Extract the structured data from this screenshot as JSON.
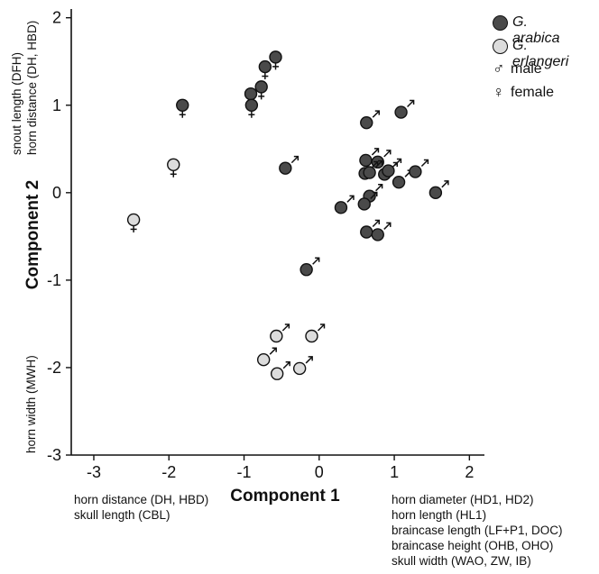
{
  "chart_data": {
    "type": "scatter",
    "xlabel": "Component 1",
    "ylabel": "Component 2",
    "xlim": [
      -3.3,
      2.2
    ],
    "ylim": [
      -3,
      2.1
    ],
    "xticks": [
      "-3",
      "-2",
      "-1",
      "0",
      "1",
      "2"
    ],
    "yticks": [
      "2",
      "1",
      "0",
      "-1",
      "-2",
      "-3"
    ],
    "grid": false,
    "legend_position": "top-right",
    "series": [
      {
        "name": "G. arabica",
        "color": "#4a4a4a",
        "points": [
          {
            "x": -1.82,
            "y": 1.0,
            "sex": "female"
          },
          {
            "x": -0.58,
            "y": 1.55,
            "sex": "female"
          },
          {
            "x": -0.72,
            "y": 1.44,
            "sex": "female"
          },
          {
            "x": -0.77,
            "y": 1.21,
            "sex": "female"
          },
          {
            "x": -0.91,
            "y": 1.13,
            "sex": "female"
          },
          {
            "x": -0.9,
            "y": 1.0,
            "sex": "female"
          },
          {
            "x": 0.63,
            "y": 0.8,
            "sex": "male"
          },
          {
            "x": 1.09,
            "y": 0.92,
            "sex": "male"
          },
          {
            "x": -0.45,
            "y": 0.28,
            "sex": "male"
          },
          {
            "x": 0.62,
            "y": 0.37,
            "sex": "male"
          },
          {
            "x": 0.78,
            "y": 0.35,
            "sex": "male"
          },
          {
            "x": 0.61,
            "y": 0.22,
            "sex": "male"
          },
          {
            "x": 0.67,
            "y": 0.23,
            "sex": "male"
          },
          {
            "x": 0.87,
            "y": 0.21,
            "sex": "male"
          },
          {
            "x": 0.92,
            "y": 0.25,
            "sex": "male"
          },
          {
            "x": 1.06,
            "y": 0.12,
            "sex": "male"
          },
          {
            "x": 1.28,
            "y": 0.24,
            "sex": "male"
          },
          {
            "x": 1.55,
            "y": 0.0,
            "sex": "male"
          },
          {
            "x": 0.67,
            "y": -0.04,
            "sex": "male"
          },
          {
            "x": 0.29,
            "y": -0.17,
            "sex": "male"
          },
          {
            "x": 0.6,
            "y": -0.13,
            "sex": "male"
          },
          {
            "x": 0.63,
            "y": -0.45,
            "sex": "male"
          },
          {
            "x": 0.78,
            "y": -0.48,
            "sex": "male"
          },
          {
            "x": -0.17,
            "y": -0.88,
            "sex": "male"
          }
        ]
      },
      {
        "name": "G. erlangeri",
        "color": "#dcdcdc",
        "points": [
          {
            "x": -1.94,
            "y": 0.32,
            "sex": "female"
          },
          {
            "x": -2.47,
            "y": -0.31,
            "sex": "female"
          },
          {
            "x": -0.57,
            "y": -1.64,
            "sex": "male"
          },
          {
            "x": -0.1,
            "y": -1.64,
            "sex": "male"
          },
          {
            "x": -0.74,
            "y": -1.91,
            "sex": "male"
          },
          {
            "x": -0.26,
            "y": -2.01,
            "sex": "male"
          },
          {
            "x": -0.56,
            "y": -2.07,
            "sex": "male"
          }
        ]
      }
    ]
  },
  "legend": {
    "species": [
      {
        "label": "G. arabica",
        "color": "#4a4a4a"
      },
      {
        "label": "G. erlangeri",
        "color": "#dcdcdc"
      }
    ],
    "sexes": [
      {
        "symbol": "♂",
        "label": "male"
      },
      {
        "symbol": "♀",
        "label": "female"
      }
    ]
  },
  "annotations": {
    "y_top": [
      "snout length (DFH)",
      "horn distance (DH, HBD)"
    ],
    "y_bottom": [
      "horn width (MWH)"
    ],
    "x_left": [
      "horn distance (DH, HBD)",
      "skull length (CBL)"
    ],
    "x_right": [
      "horn diameter (HD1, HD2)",
      "horn length (HL1)",
      "braincase length (LF+P1, DOC)",
      "braincase height (OHB, OHO)",
      "skull width (WAO, ZW, IB)"
    ]
  }
}
